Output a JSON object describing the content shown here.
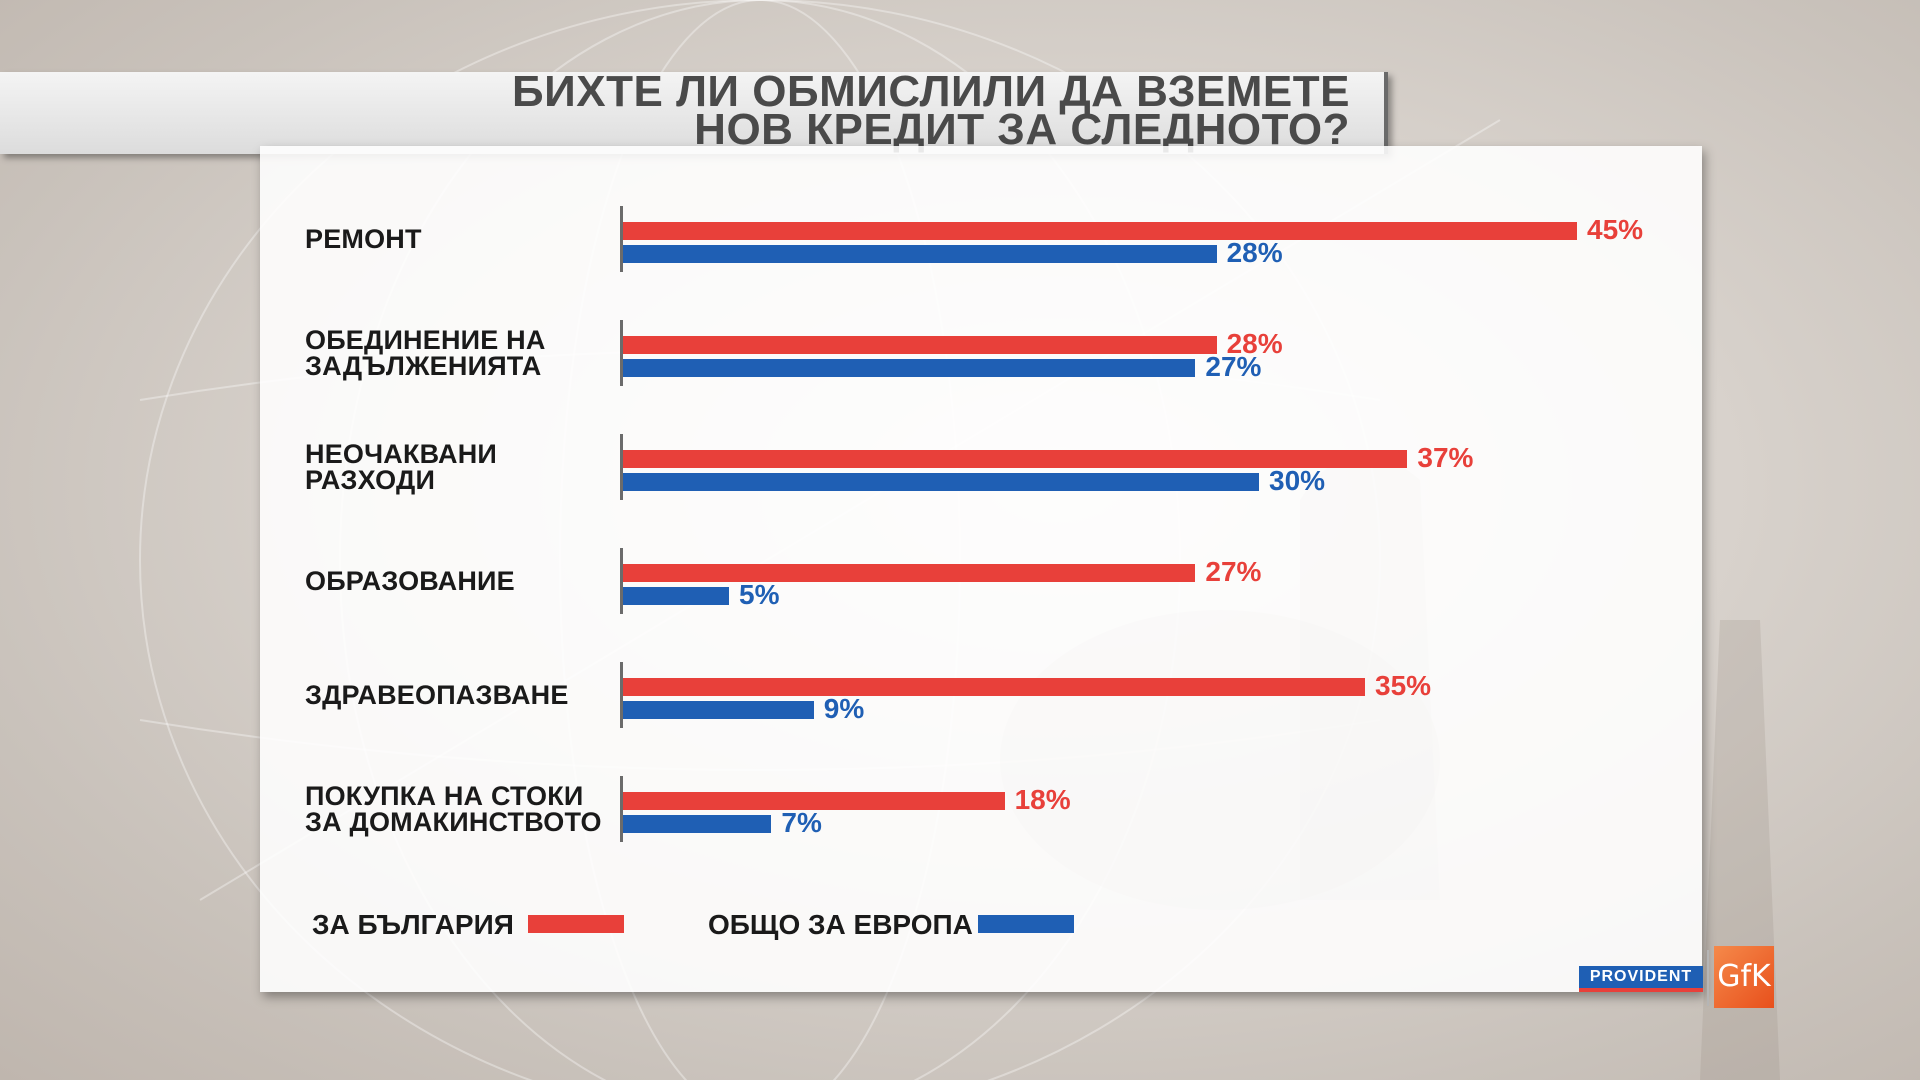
{
  "title": {
    "line1": "БИХТЕ ЛИ ОБМИСЛИЛИ ДА ВЗЕМЕТЕ",
    "line2": "НОВ КРЕДИТ ЗА СЛЕДНОТО?"
  },
  "chart_data": {
    "type": "bar",
    "orientation": "horizontal",
    "categories": [
      "РЕМОНТ",
      "ОБЕДИНЕНИЕ НА\nЗАДЪЛЖЕНИЯТА",
      "НЕОЧАКВАНИ\nРАЗХОДИ",
      "ОБРАЗОВАНИЕ",
      "ЗДРАВЕОПАЗВАНЕ",
      "ПОКУПКА НА СТОКИ\nЗА ДОМАКИНСТВОТО"
    ],
    "series": [
      {
        "name": "ЗА БЪЛГАРИЯ",
        "color": "#e8403a",
        "values": [
          45,
          28,
          37,
          27,
          35,
          18
        ],
        "labels": [
          "45%",
          "28%",
          "37%",
          "27%",
          "35%",
          "18%"
        ]
      },
      {
        "name": "ОБЩО ЗА ЕВРОПА",
        "color": "#1f5fb4",
        "values": [
          28,
          27,
          30,
          5,
          9,
          7
        ],
        "labels": [
          "28%",
          "27%",
          "30%",
          "5%",
          "9%",
          "7%"
        ]
      }
    ],
    "unit": "%",
    "grid": false,
    "legend_position": "bottom"
  },
  "logos": {
    "provident": "PROVIDENT",
    "gfk": "GfK"
  }
}
